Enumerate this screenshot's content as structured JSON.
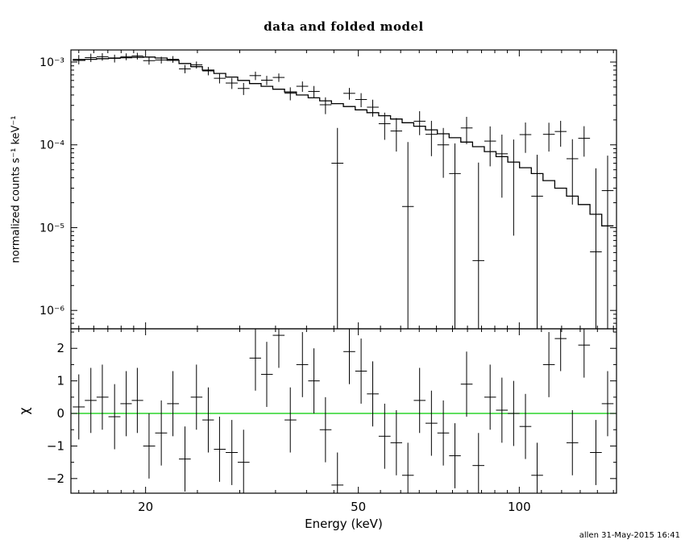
{
  "footer_note": "allen 31-May-2015 16:41",
  "colors": {
    "foreground": "#000000",
    "background": "#ffffff"
  },
  "chart_data": {
    "type": "scatter",
    "title": "data and folded model",
    "xlabel": "Energy (keV)",
    "xscale": "log",
    "xlim": [
      14.5,
      152
    ],
    "xticks": [
      {
        "v": 20,
        "label": "20"
      },
      {
        "v": 50,
        "label": "50"
      },
      {
        "v": 100,
        "label": "100"
      }
    ],
    "xminor": [
      15,
      16,
      17,
      18,
      19,
      25,
      30,
      35,
      40,
      45,
      55,
      60,
      65,
      70,
      75,
      80,
      85,
      90,
      95,
      110,
      120,
      130,
      140,
      150
    ],
    "energy": [
      15.0,
      15.8,
      16.6,
      17.5,
      18.4,
      19.3,
      20.3,
      21.4,
      22.5,
      23.7,
      24.9,
      26.2,
      27.5,
      29.0,
      30.5,
      32.1,
      33.7,
      35.5,
      37.3,
      39.3,
      41.3,
      43.4,
      45.7,
      48.1,
      50.6,
      53.2,
      56.0,
      58.9,
      61.9,
      65.1,
      68.5,
      72.1,
      75.8,
      79.7,
      83.9,
      88.2,
      92.8,
      97.6,
      102.7,
      108.0,
      113.6,
      119.5,
      125.7,
      132.2,
      139.1,
      146.3
    ],
    "panels": [
      {
        "name": "spectrum",
        "ylabel": "normalized counts s⁻¹ keV⁻¹",
        "yscale": "log",
        "ylim": [
          6e-07,
          0.0014
        ],
        "yticks": [
          {
            "v": 0.001,
            "label": "10⁻³"
          },
          {
            "v": 0.0001,
            "label": "10⁻⁴"
          },
          {
            "v": 1e-05,
            "label": "10⁻⁵"
          },
          {
            "v": 1e-06,
            "label": "10⁻⁶"
          }
        ],
        "series": [
          {
            "name": "data",
            "type": "errorbar",
            "y": [
              0.001078,
              0.001132,
              0.00116,
              0.001108,
              0.001163,
              0.001184,
              0.00104,
              0.00106,
              0.00108,
              0.000827,
              0.000925,
              0.000782,
              0.000637,
              0.000558,
              0.00048,
              0.000686,
              0.000604,
              0.000652,
              0.00042,
              0.00051,
              0.000442,
              0.000305,
              6e-05,
              0.000419,
              0.000353,
              0.000285,
              0.00018,
              0.000147,
              1.8e-05,
              0.000193,
              0.000134,
              0.0001,
              4.5e-05,
              0.00016,
              4e-06,
              0.000111,
              7.8e-05,
              6.2e-05,
              0.000133,
              2.4e-05,
              0.000134,
              0.000145,
              6.8e-05,
              0.00012,
              5.1e-06,
              2.8e-05
            ],
            "yerr": [
              0.00014,
              0.00013,
              0.00012,
              0.00012,
              0.00011,
              0.00011,
              0.00011,
              0.0001,
              0.0001,
              9.5e-05,
              9e-05,
              9e-05,
              8.5e-05,
              8.5e-05,
              8e-05,
              8e-05,
              7.8e-05,
              7.6e-05,
              7.5e-05,
              7.3e-05,
              7.2e-05,
              7e-05,
              0.0001,
              6.8e-05,
              6.8e-05,
              6.6e-05,
              6.5e-05,
              6.4e-05,
              9e-05,
              6.2e-05,
              6.1e-05,
              6e-05,
              5.9e-05,
              5.8e-05,
              5.7e-05,
              5.6e-05,
              5.5e-05,
              5.4e-05,
              5.3e-05,
              5.2e-05,
              5.1e-05,
              5e-05,
              4.9e-05,
              4.8e-05,
              4.7e-05,
              4.6e-05
            ]
          },
          {
            "name": "folded model",
            "type": "step",
            "y": [
              0.00105,
              0.00108,
              0.0011,
              0.00112,
              0.00113,
              0.00114,
              0.00115,
              0.00112,
              0.00105,
              0.00096,
              0.00088,
              0.0008,
              0.00073,
              0.00066,
              0.0006,
              0.00055,
              0.00051,
              0.00047,
              0.000435,
              0.0004,
              0.00037,
              0.00034,
              0.000315,
              0.00029,
              0.000265,
              0.000245,
              0.000225,
              0.000205,
              0.000185,
              0.000168,
              0.000152,
              0.000136,
              0.000122,
              0.000108,
              9.5e-05,
              8.3e-05,
              7.2e-05,
              6.2e-05,
              5.3e-05,
              4.5e-05,
              3.7e-05,
              3e-05,
              2.4e-05,
              1.9e-05,
              1.45e-05,
              1.05e-05
            ]
          }
        ]
      },
      {
        "name": "residuals",
        "ylabel": "χ",
        "yscale": "linear",
        "ylim": [
          -2.45,
          2.6
        ],
        "yticks": [
          {
            "v": -2,
            "label": "−2"
          },
          {
            "v": -1,
            "label": "−1"
          },
          {
            "v": 0,
            "label": "0"
          },
          {
            "v": 1,
            "label": "1"
          },
          {
            "v": 2,
            "label": "2"
          }
        ],
        "yminor": [
          -1.5,
          -0.5,
          0.5,
          1.5,
          2.5
        ],
        "zero_line": {
          "v": 0,
          "color": "#00cc00"
        },
        "series": [
          {
            "name": "chi",
            "type": "errorbar",
            "y": [
              0.2,
              0.4,
              0.5,
              -0.1,
              0.3,
              0.4,
              -1.0,
              -0.6,
              0.3,
              -1.4,
              0.5,
              -0.2,
              -1.1,
              -1.2,
              -1.5,
              1.7,
              1.2,
              2.4,
              -0.2,
              1.5,
              1.0,
              -0.5,
              -2.2,
              1.9,
              1.3,
              0.6,
              -0.7,
              -0.9,
              -1.9,
              0.4,
              -0.3,
              -0.6,
              -1.3,
              0.9,
              -1.6,
              0.5,
              0.1,
              0.0,
              -0.4,
              -1.9,
              1.5,
              2.3,
              -0.9,
              2.1,
              -1.2,
              0.3
            ],
            "yerr": 1
          }
        ]
      }
    ]
  }
}
